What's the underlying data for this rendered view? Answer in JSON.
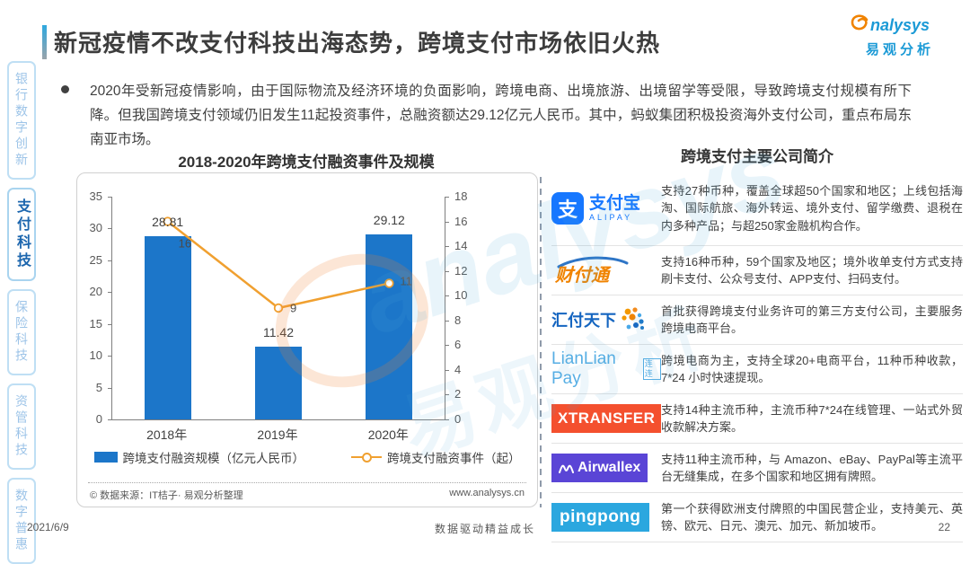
{
  "header": {
    "title": "新冠疫情不改支付科技出海态势，跨境支付市场依旧火热",
    "logo": {
      "en": "analysys",
      "en_suffix": "nalysys",
      "cn": "易观分析"
    }
  },
  "sidebar": {
    "items": [
      {
        "label": "银行数字创新",
        "active": false
      },
      {
        "label": "支付科技",
        "active": true
      },
      {
        "label": "保险科技",
        "active": false
      },
      {
        "label": "资管科技",
        "active": false
      },
      {
        "label": "数字普惠",
        "active": false
      }
    ]
  },
  "bullet": {
    "text": "2020年受新冠疫情影响，由于国际物流及经济环境的负面影响，跨境电商、出境旅游、出境留学等受限，导致跨境支付规模有所下降。但我国跨境支付领域仍旧发生11起投资事件，总融资额达29.12亿元人民币。其中，蚂蚁集团积极投资海外支付公司，重点布局东南亚市场。"
  },
  "chart_data": {
    "type": "bar+line",
    "title": "2018-2020年跨境支付融资事件及规模",
    "categories": [
      "2018年",
      "2019年",
      "2020年"
    ],
    "series": [
      {
        "name": "跨境支付融资规模（亿元人民币）",
        "type": "bar",
        "axis": "left",
        "color": "#1C76C9",
        "values": [
          28.81,
          11.42,
          29.12
        ]
      },
      {
        "name": "跨境支付融资事件（起）",
        "type": "line",
        "axis": "right",
        "color": "#F0A030",
        "values": [
          16,
          9,
          11
        ]
      }
    ],
    "axes": {
      "left": {
        "min": 0,
        "max": 35,
        "step": 5
      },
      "right": {
        "min": 0,
        "max": 18,
        "step": 2
      }
    },
    "grid": false,
    "legend_position": "bottom",
    "source": "© 数据来源：IT桔子· 易观分析整理",
    "website": "www.analysys.cn"
  },
  "right_panel": {
    "title": "跨境支付主要公司简介",
    "companies": [
      {
        "name": "支付宝 ALIPAY",
        "logo": {
          "glyph": "支",
          "cn": "支付宝",
          "en": "ALIPAY"
        },
        "desc": "支持27种币种，覆盖全球超50个国家和地区；上线包括海淘、国际航旅、海外转运、境外支付、留学缴费、退税在内多种产品；与超250家金融机构合作。"
      },
      {
        "name": "财付通",
        "logo": {
          "text": "财付通"
        },
        "desc": "支持16种币种，59个国家及地区；境外收单支付方式支持刷卡支付、公众号支付、APP支付、扫码支付。"
      },
      {
        "name": "汇付天下",
        "logo": {
          "text": "汇付天下"
        },
        "desc": "首批获得跨境支付业务许可的第三方支付公司，主要服务跨境电商平台。"
      },
      {
        "name": "LianLian Pay 连连",
        "logo": {
          "text": "LianLian Pay",
          "badge": "连连"
        },
        "desc": "跨境电商为主，支持全球20+电商平台，11种币种收款，7*24 小时快速提现。"
      },
      {
        "name": "XTRANSFER",
        "logo": {
          "text": "XTRANSFER"
        },
        "desc": "支持14种主流币种，主流币种7*24在线管理、一站式外贸收款解决方案。"
      },
      {
        "name": "Airwallex",
        "logo": {
          "text": "Airwallex"
        },
        "desc": "支持11种主流币种，与 Amazon、eBay、PayPal等主流平台无缝集成，在多个国家和地区拥有牌照。"
      },
      {
        "name": "pingpong",
        "logo": {
          "text": "pingpong"
        },
        "desc": "第一个获得欧洲支付牌照的中国民营企业，支持美元、英镑、欧元、日元、澳元、加元、新加坡币。"
      }
    ]
  },
  "watermark": {
    "en": "analysys",
    "cn": "易观分析"
  },
  "footer": {
    "date": "2021/6/9",
    "slogan": "数据驱动精益成长",
    "page": "22"
  },
  "colors": {
    "bar_blue": "#1C76C9",
    "line_orange": "#F0A030",
    "accent_blue": "#2EA8DF",
    "brand_blue": "#1B9AD6",
    "alipay_blue": "#1677FF",
    "tenpay_orange": "#F08300",
    "huifu_blue": "#1565C0",
    "lianlian_blue": "#56AEE4",
    "xtransfer_orange": "#F4502E",
    "airwallex_purple": "#5A45D6",
    "pingpong_blue": "#2BA7DF"
  }
}
